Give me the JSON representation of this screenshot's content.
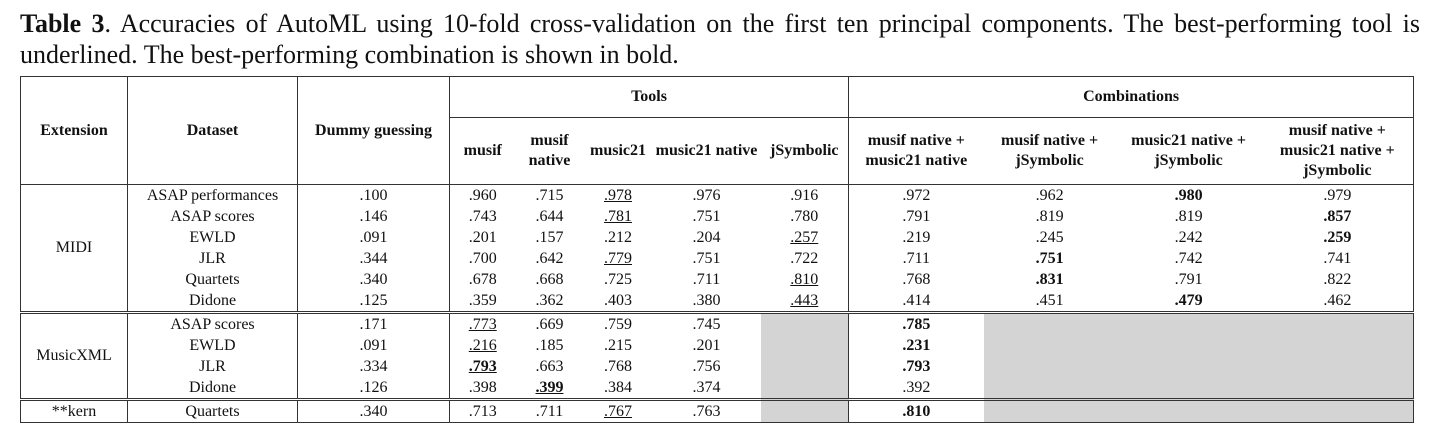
{
  "caption": {
    "label": "Table 3",
    "text": ". Accuracies of AutoML using 10-fold cross-validation on the first ten principal components. The best-performing tool is underlined. The best-performing combination is shown in bold."
  },
  "table": {
    "headers": {
      "extension": "Extension",
      "dataset": "Dataset",
      "dummy": "Dummy guessing",
      "tools": "Tools",
      "combinations": "Combinations",
      "tool_names": [
        "musif",
        "musif native",
        "music21",
        "music21 native",
        "jSymbolic"
      ],
      "combination_names": [
        "musif native + music21 native",
        "musif native + jSymbolic",
        "music21 native + jSymbolic",
        "musif native + music21 native + jSymbolic"
      ]
    },
    "groups": [
      {
        "extension": "MIDI",
        "rows": [
          {
            "dataset": "ASAP performances",
            "dummy": ".100",
            "tools": [
              ".960",
              ".715",
              {
                "text": ".978",
                "underline": true
              },
              ".976",
              ".916"
            ],
            "combinations": [
              ".972",
              ".962",
              {
                "text": ".980",
                "bold": true
              },
              ".979"
            ]
          },
          {
            "dataset": "ASAP scores",
            "dummy": ".146",
            "tools": [
              ".743",
              ".644",
              {
                "text": ".781",
                "underline": true
              },
              ".751",
              ".780"
            ],
            "combinations": [
              ".791",
              ".819",
              ".819",
              {
                "text": ".857",
                "bold": true
              }
            ]
          },
          {
            "dataset": "EWLD",
            "dummy": ".091",
            "tools": [
              ".201",
              ".157",
              ".212",
              ".204",
              {
                "text": ".257",
                "underline": true
              }
            ],
            "combinations": [
              ".219",
              ".245",
              ".242",
              {
                "text": ".259",
                "bold": true
              }
            ]
          },
          {
            "dataset": "JLR",
            "dummy": ".344",
            "tools": [
              ".700",
              ".642",
              {
                "text": ".779",
                "underline": true
              },
              ".751",
              ".722"
            ],
            "combinations": [
              ".711",
              {
                "text": ".751",
                "bold": true
              },
              ".742",
              ".741"
            ]
          },
          {
            "dataset": "Quartets",
            "dummy": ".340",
            "tools": [
              ".678",
              ".668",
              ".725",
              ".711",
              {
                "text": ".810",
                "underline": true
              }
            ],
            "combinations": [
              ".768",
              {
                "text": ".831",
                "bold": true
              },
              ".791",
              ".822"
            ]
          },
          {
            "dataset": "Didone",
            "dummy": ".125",
            "tools": [
              ".359",
              ".362",
              ".403",
              ".380",
              {
                "text": ".443",
                "underline": true
              }
            ],
            "combinations": [
              ".414",
              ".451",
              {
                "text": ".479",
                "bold": true
              },
              ".462"
            ]
          }
        ]
      },
      {
        "extension": "MusicXML",
        "rows": [
          {
            "dataset": "ASAP scores",
            "dummy": ".171",
            "tools": [
              {
                "text": ".773",
                "underline": true
              },
              ".669",
              ".759",
              ".745",
              null
            ],
            "combinations": [
              {
                "text": ".785",
                "bold": true
              },
              null,
              null,
              null
            ]
          },
          {
            "dataset": "EWLD",
            "dummy": ".091",
            "tools": [
              {
                "text": ".216",
                "underline": true
              },
              ".185",
              ".215",
              ".201",
              null
            ],
            "combinations": [
              {
                "text": ".231",
                "bold": true
              },
              null,
              null,
              null
            ]
          },
          {
            "dataset": "JLR",
            "dummy": ".334",
            "tools": [
              {
                "text": ".793",
                "underline": true,
                "bold": true
              },
              ".663",
              ".768",
              ".756",
              null
            ],
            "combinations": [
              {
                "text": ".793",
                "bold": true
              },
              null,
              null,
              null
            ]
          },
          {
            "dataset": "Didone",
            "dummy": ".126",
            "tools": [
              ".398",
              {
                "text": ".399",
                "underline": true,
                "bold": true
              },
              ".384",
              ".374",
              null
            ],
            "combinations": [
              ".392",
              null,
              null,
              null
            ]
          }
        ]
      },
      {
        "extension": "**kern",
        "rows": [
          {
            "dataset": "Quartets",
            "dummy": ".340",
            "tools": [
              ".713",
              ".711",
              {
                "text": ".767",
                "underline": true
              },
              ".763",
              null
            ],
            "combinations": [
              {
                "text": ".810",
                "bold": true
              },
              null,
              null,
              null
            ]
          }
        ]
      }
    ]
  }
}
